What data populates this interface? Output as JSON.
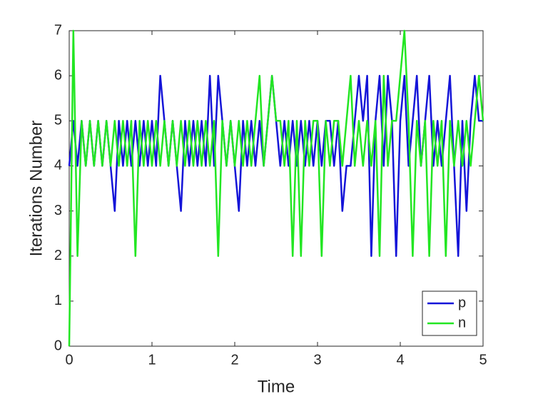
{
  "chart_data": {
    "type": "line",
    "xlabel": "Time",
    "ylabel": "Iterations Number",
    "x": [
      0,
      0.05,
      0.1,
      0.15,
      0.2,
      0.25,
      0.3,
      0.35,
      0.4,
      0.45,
      0.5,
      0.55,
      0.6,
      0.65,
      0.7,
      0.75,
      0.8,
      0.85,
      0.9,
      0.95,
      1,
      1.05,
      1.1,
      1.15,
      1.2,
      1.25,
      1.3,
      1.35,
      1.4,
      1.45,
      1.5,
      1.55,
      1.6,
      1.65,
      1.7,
      1.75,
      1.8,
      1.85,
      1.9,
      1.95,
      2,
      2.05,
      2.1,
      2.15,
      2.2,
      2.25,
      2.3,
      2.35,
      2.4,
      2.45,
      2.5,
      2.55,
      2.6,
      2.65,
      2.7,
      2.75,
      2.8,
      2.85,
      2.9,
      2.95,
      3,
      3.05,
      3.1,
      3.15,
      3.2,
      3.25,
      3.3,
      3.35,
      3.4,
      3.45,
      3.5,
      3.55,
      3.6,
      3.65,
      3.7,
      3.75,
      3.8,
      3.85,
      3.9,
      3.95,
      4,
      4.05,
      4.1,
      4.15,
      4.2,
      4.25,
      4.3,
      4.35,
      4.4,
      4.45,
      4.5,
      4.55,
      4.6,
      4.65,
      4.7,
      4.75,
      4.8,
      4.85,
      4.9,
      4.95,
      5
    ],
    "series": [
      {
        "name": "p",
        "color": "#1414d8",
        "values": [
          4,
          5,
          4,
          5,
          4,
          5,
          4,
          5,
          4,
          5,
          4,
          3,
          5,
          4,
          5,
          4,
          5,
          4,
          5,
          4,
          5,
          4,
          6,
          5,
          4,
          5,
          4,
          3,
          5,
          4,
          5,
          4,
          5,
          4,
          6,
          4,
          6,
          5,
          4,
          5,
          4,
          3,
          5,
          4,
          5,
          4,
          5,
          4,
          5,
          6,
          5,
          4,
          5,
          4,
          5,
          4,
          5,
          4,
          5,
          4,
          5,
          4,
          5,
          5,
          4,
          5,
          3,
          4,
          4,
          5,
          6,
          5,
          6,
          2,
          5,
          6,
          4,
          6,
          5,
          2,
          5,
          6,
          4,
          5,
          6,
          4,
          5,
          6,
          4,
          5,
          4,
          5,
          6,
          4,
          2,
          5,
          3,
          5,
          6,
          5,
          5
        ]
      },
      {
        "name": "n",
        "color": "#22e622",
        "values": [
          0,
          7,
          2,
          5,
          4,
          5,
          4,
          5,
          4,
          5,
          4,
          5,
          4,
          5,
          4,
          5,
          2,
          5,
          4,
          5,
          4,
          5,
          4,
          5,
          4,
          5,
          4,
          5,
          4,
          5,
          4,
          5,
          4,
          5,
          4,
          5,
          2,
          5,
          4,
          5,
          4,
          5,
          4,
          5,
          4,
          5,
          6,
          4,
          5,
          6,
          5,
          5,
          4,
          5,
          2,
          5,
          2,
          5,
          4,
          5,
          5,
          2,
          5,
          4,
          5,
          5,
          4,
          5,
          6,
          4,
          5,
          4,
          5,
          4,
          5,
          2,
          6,
          4,
          5,
          5,
          6,
          7,
          5,
          2,
          5,
          4,
          5,
          2,
          5,
          4,
          5,
          2,
          5,
          4,
          5,
          4,
          5,
          4,
          5,
          6,
          5
        ]
      }
    ],
    "xlim": [
      0,
      5
    ],
    "xticks": [
      0,
      1,
      2,
      3,
      4,
      5
    ],
    "ylim": [
      0,
      7
    ],
    "yticks": [
      0,
      1,
      2,
      3,
      4,
      5,
      6,
      7
    ],
    "grid": false,
    "legend": "lower right"
  }
}
